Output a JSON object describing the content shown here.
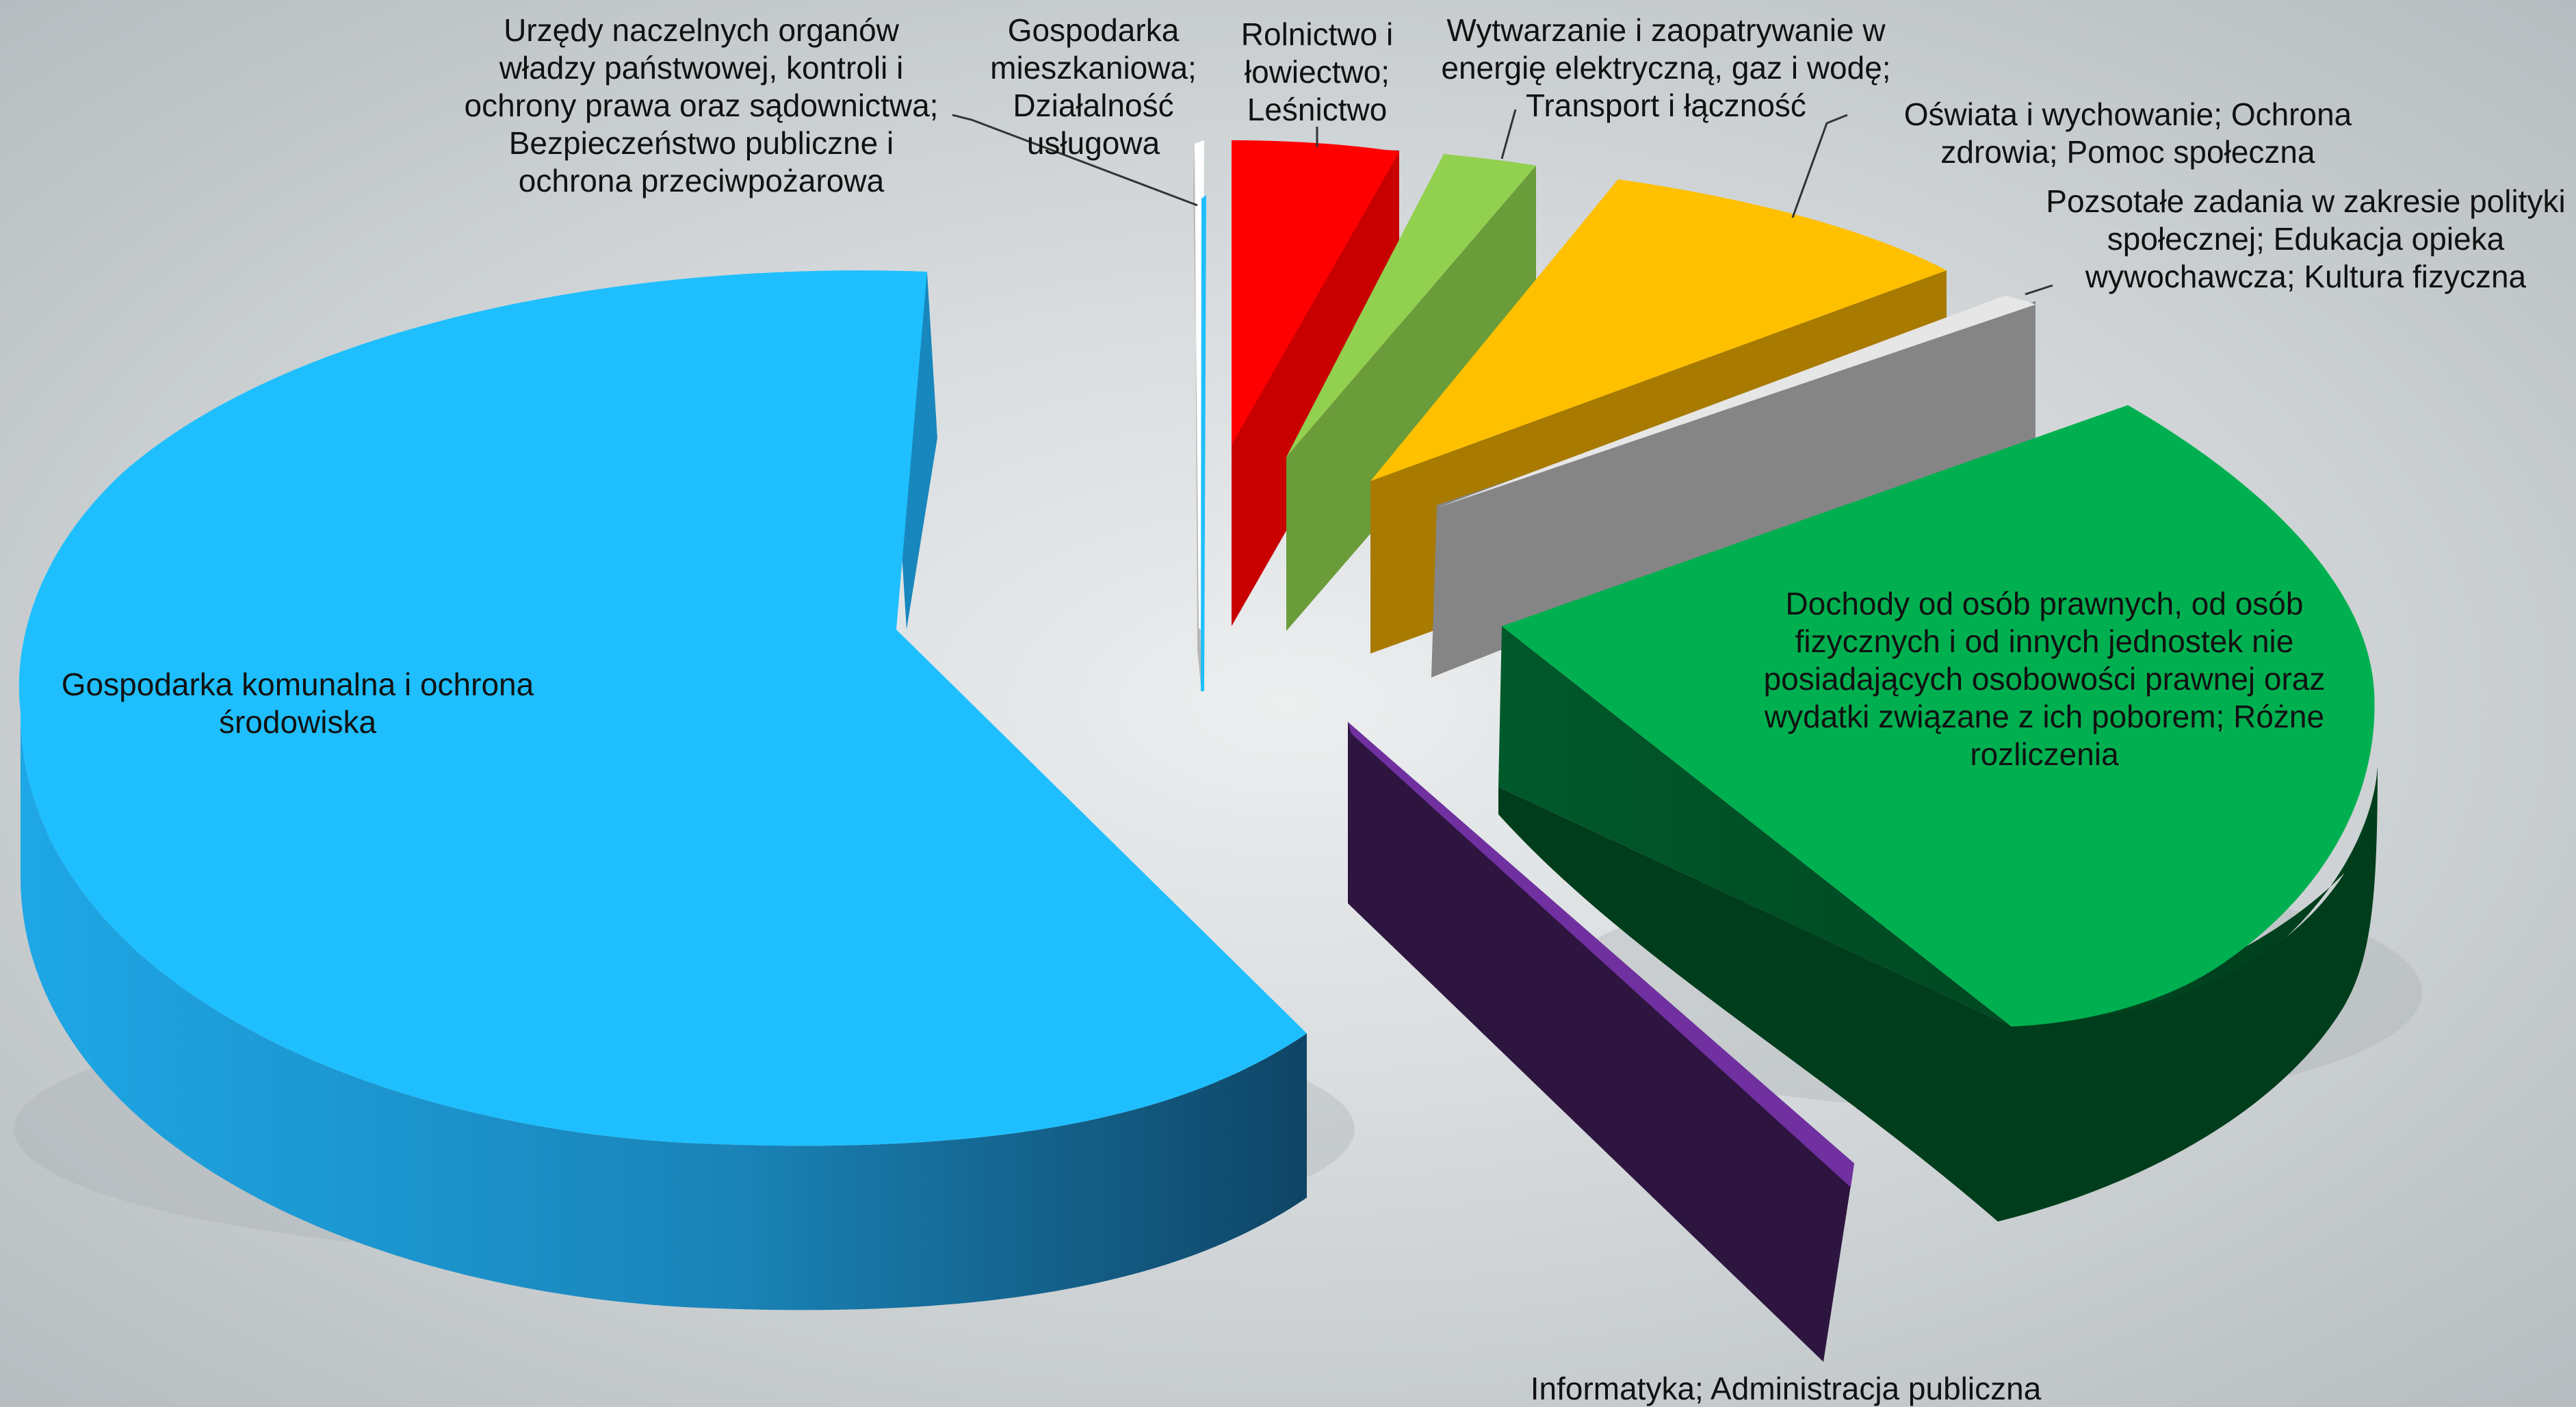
{
  "chart_data": {
    "type": "pie",
    "style": "exploded 3D pie",
    "legend": "none",
    "slices": [
      {
        "label_lines": [
          "Gospodarka komunalna i ochrona",
          "środowiska"
        ],
        "value": 58.5,
        "color": "#1fbfff",
        "side_color": "#1a8fc4",
        "side_dark": "#104868"
      },
      {
        "label_lines": [
          "Urzędy naczelnych organów",
          "władzy państwowej, kontroli i",
          "ochrony prawa oraz sądownictwa;",
          "Bezpieczeństwo publiczne i",
          "ochrona przeciwpożarowa"
        ],
        "value": 0.3,
        "color": "#e9e9e9",
        "side_color": "#b5b5b5",
        "side_dark": "#8c8c8c"
      },
      {
        "label_lines": [
          "Gospodarka",
          "mieszkaniowa;",
          "Działalność",
          "usługowa"
        ],
        "value": 0.3,
        "color": "#1fbfff",
        "side_color": "#1a8fc4",
        "side_dark": "#104868"
      },
      {
        "label_lines": [
          "Rolnictwo i",
          "łowiectwo;",
          "Leśnictwo"
        ],
        "value": 3.0,
        "color": "#ff0000",
        "side_color": "#c80000",
        "side_dark": "#9a0000"
      },
      {
        "label_lines": [
          "Wytwarzanie i zaopatrywanie w",
          "energię elektryczną, gaz i wodę;",
          "Transport i łączność"
        ],
        "value": 3.0,
        "color": "#92d050",
        "side_color": "#6a9c3a",
        "side_dark": "#557c2e"
      },
      {
        "label_lines": [
          "Oświata i wychowanie; Ochrona",
          "zdrowia; Pomoc społeczna"
        ],
        "value": 8.0,
        "color": "#ffc000",
        "side_color": "#a87a00",
        "side_dark": "#7a5800"
      },
      {
        "label_lines": [
          "Pozsotałe zadania w zakresie polityki",
          "społecznej; Edukacja opieka",
          "wywochawcza; Kultura fizyczna"
        ],
        "value": 0.9,
        "color": "#e4e4e4",
        "side_color": "#8a8a8a",
        "side_dark": "#6e6e6e"
      },
      {
        "label_lines": [
          "Dochody od osób prawnych, od osób",
          "fizycznych i od innych jednostek nie",
          "posiadających osobowości prawnej oraz",
          "wydatki związane z ich poborem; Różne",
          "rozliczenia"
        ],
        "value": 22.0,
        "color": "#00b050",
        "side_color": "#00602c",
        "side_dark": "#003c1a"
      },
      {
        "label_lines": [
          "Informatyka; Administracja publiczna"
        ],
        "value": 0.4,
        "color": "#7030a0",
        "side_color": "#2e1540",
        "side_dark": "#24102f"
      }
    ]
  }
}
